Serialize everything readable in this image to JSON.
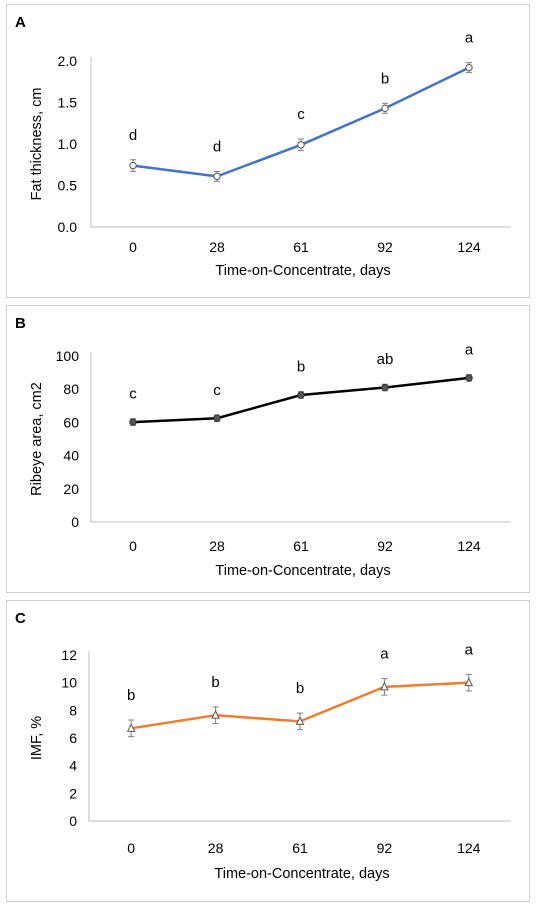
{
  "chart_data": [
    {
      "panel": "A",
      "type": "line",
      "xlabel": "Time-on-Concentrate, days",
      "ylabel": "Fat thickness, cm",
      "categories": [
        "0",
        "28",
        "61",
        "92",
        "124"
      ],
      "values": [
        0.74,
        0.61,
        0.99,
        1.43,
        1.92
      ],
      "errors": [
        0.07,
        0.06,
        0.07,
        0.06,
        0.06
      ],
      "letters": [
        "d",
        "d",
        "c",
        "b",
        "a"
      ],
      "ylim": [
        0,
        2.0
      ],
      "yticks": [
        "0.0",
        "0.5",
        "1.0",
        "1.5",
        "2.0"
      ],
      "color": "#4472C4",
      "marker": "circle",
      "grid": false
    },
    {
      "panel": "B",
      "type": "line",
      "xlabel": "Time-on-Concentrate, days",
      "ylabel": "Ribeye area, cm2",
      "categories": [
        "0",
        "28",
        "61",
        "92",
        "124"
      ],
      "values": [
        60.2,
        62.5,
        76.5,
        81.0,
        86.8
      ],
      "errors": [
        2.0,
        2.0,
        2.0,
        2.0,
        2.0
      ],
      "letters": [
        "c",
        "c",
        "b",
        "ab",
        "a"
      ],
      "ylim": [
        0,
        100
      ],
      "yticks": [
        "0",
        "20",
        "40",
        "60",
        "80",
        "100"
      ],
      "color": "#000000",
      "marker": "circle",
      "grid": false
    },
    {
      "panel": "C",
      "type": "line",
      "xlabel": "Time-on-Concentrate, days",
      "ylabel": "IMF, %",
      "categories": [
        "0",
        "28",
        "61",
        "92",
        "124"
      ],
      "values": [
        6.7,
        7.65,
        7.2,
        9.7,
        10.0
      ],
      "errors": [
        0.6,
        0.6,
        0.6,
        0.6,
        0.6
      ],
      "letters": [
        "b",
        "b",
        "b",
        "a",
        "a"
      ],
      "ylim": [
        0,
        12
      ],
      "yticks": [
        "0",
        "2",
        "4",
        "6",
        "8",
        "10",
        "12"
      ],
      "color": "#ED7D31",
      "marker": "triangle",
      "grid": false
    }
  ]
}
